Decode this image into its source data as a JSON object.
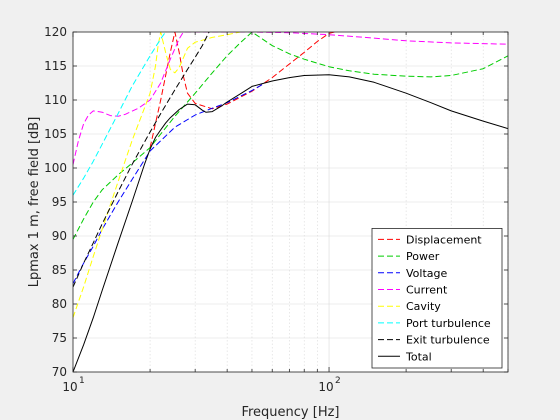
{
  "chart_data": {
    "type": "line",
    "title": "",
    "xlabel": "Frequency [Hz]",
    "ylabel": "Lpmax 1 m, free field [dB]",
    "xscale": "log",
    "xlim": [
      10,
      500
    ],
    "ylim": [
      70,
      120
    ],
    "grid": true,
    "legend_position": "bottom-right",
    "x_tick_labels": [
      "10",
      "10",
      "2"
    ],
    "y_ticks": [
      70,
      75,
      80,
      85,
      90,
      95,
      100,
      105,
      110,
      115,
      120
    ],
    "series": [
      {
        "name": "Displacement",
        "color": "#ff0000",
        "dash": "dashed",
        "x": [
          20,
          22,
          24,
          25,
          26,
          27,
          28,
          30,
          35,
          40,
          50,
          60,
          70,
          80,
          90,
          100,
          105
        ],
        "y": [
          103,
          110,
          117,
          120,
          117,
          113.5,
          111,
          109.5,
          108.7,
          109.4,
          111.3,
          113.3,
          115.3,
          117,
          118.6,
          119.8,
          120
        ]
      },
      {
        "name": "Power",
        "color": "#00cc00",
        "dash": "dashed",
        "x": [
          10,
          11,
          12,
          13,
          15,
          17,
          20,
          22,
          25,
          30,
          35,
          40,
          45,
          50,
          60,
          70,
          80,
          100,
          120,
          150,
          200,
          250,
          300,
          400,
          500
        ],
        "y": [
          89.5,
          92.5,
          95,
          96.8,
          99,
          100.7,
          103,
          105,
          107.6,
          111,
          114,
          116.5,
          118.4,
          120,
          118,
          116.8,
          116,
          114.9,
          114.3,
          113.8,
          113.5,
          113.4,
          113.6,
          114.6,
          116.5
        ]
      },
      {
        "name": "Voltage",
        "color": "#0000ff",
        "dash": "dashed",
        "x": [
          10,
          11,
          12,
          13,
          15,
          17,
          20,
          22,
          25,
          30,
          35,
          40,
          50,
          55
        ],
        "y": [
          83,
          86,
          88.5,
          91,
          95,
          98.3,
          102.5,
          104,
          106,
          107.8,
          108.8,
          109.6,
          111.4,
          112.3
        ]
      },
      {
        "name": "Current",
        "color": "#ff00ff",
        "dash": "dashed",
        "x": [
          10,
          10.5,
          11,
          11.5,
          12,
          13,
          14,
          15,
          16,
          18,
          20,
          22,
          24,
          26,
          27,
          30,
          40,
          50,
          70,
          100,
          150,
          200,
          300,
          500
        ],
        "y": [
          100.5,
          104,
          106.5,
          107.8,
          108.4,
          108.2,
          107.7,
          107.6,
          107.9,
          108.8,
          110,
          112.5,
          116,
          119,
          120,
          120,
          120,
          120,
          119.9,
          119.6,
          119.1,
          118.7,
          118.4,
          118.2
        ]
      },
      {
        "name": "Cavity",
        "color": "#ffff00",
        "dash": "dashed",
        "x": [
          10,
          11,
          12,
          13,
          15,
          17,
          20,
          21,
          21.5,
          22,
          23,
          24,
          25,
          26,
          27,
          28,
          30,
          35,
          40,
          45
        ],
        "y": [
          78,
          82.5,
          87,
          91,
          98,
          104,
          111,
          115,
          118,
          120,
          117,
          114.5,
          114,
          114.8,
          116.2,
          117.6,
          118.5,
          119.2,
          119.6,
          120
        ]
      },
      {
        "name": "Port turbulence",
        "color": "#00ffff",
        "dash": "dashed",
        "x": [
          10,
          11,
          12,
          13,
          15,
          17,
          20,
          22,
          23
        ],
        "y": [
          96,
          98.5,
          101,
          103.5,
          108,
          112,
          116.5,
          119,
          120
        ]
      },
      {
        "name": "Exit turbulence",
        "color": "#000000",
        "dash": "dashed",
        "x": [
          10,
          11,
          12,
          13,
          15,
          17,
          20,
          22,
          25,
          28,
          30,
          32,
          34
        ],
        "y": [
          82.5,
          86,
          89,
          91.8,
          96.5,
          100.5,
          105.3,
          108,
          111.5,
          114.5,
          116.3,
          118,
          120
        ]
      },
      {
        "name": "Total",
        "color": "#000000",
        "dash": "solid",
        "x": [
          10,
          11,
          12,
          13,
          15,
          17,
          19,
          20,
          21,
          22,
          23,
          24,
          26,
          28,
          30,
          32,
          33,
          35,
          38,
          40,
          45,
          50,
          60,
          70,
          80,
          100,
          120,
          150,
          200,
          250,
          300,
          400,
          500
        ],
        "y": [
          70,
          74,
          78,
          82,
          89,
          95,
          100.5,
          102.8,
          104.5,
          105.6,
          106.6,
          107.4,
          108.6,
          109.4,
          109.3,
          108.5,
          108.2,
          108.3,
          109.1,
          109.7,
          110.9,
          112,
          112.8,
          113.3,
          113.6,
          113.7,
          113.4,
          112.6,
          111,
          109.6,
          108.4,
          106.9,
          105.8
        ]
      }
    ]
  }
}
